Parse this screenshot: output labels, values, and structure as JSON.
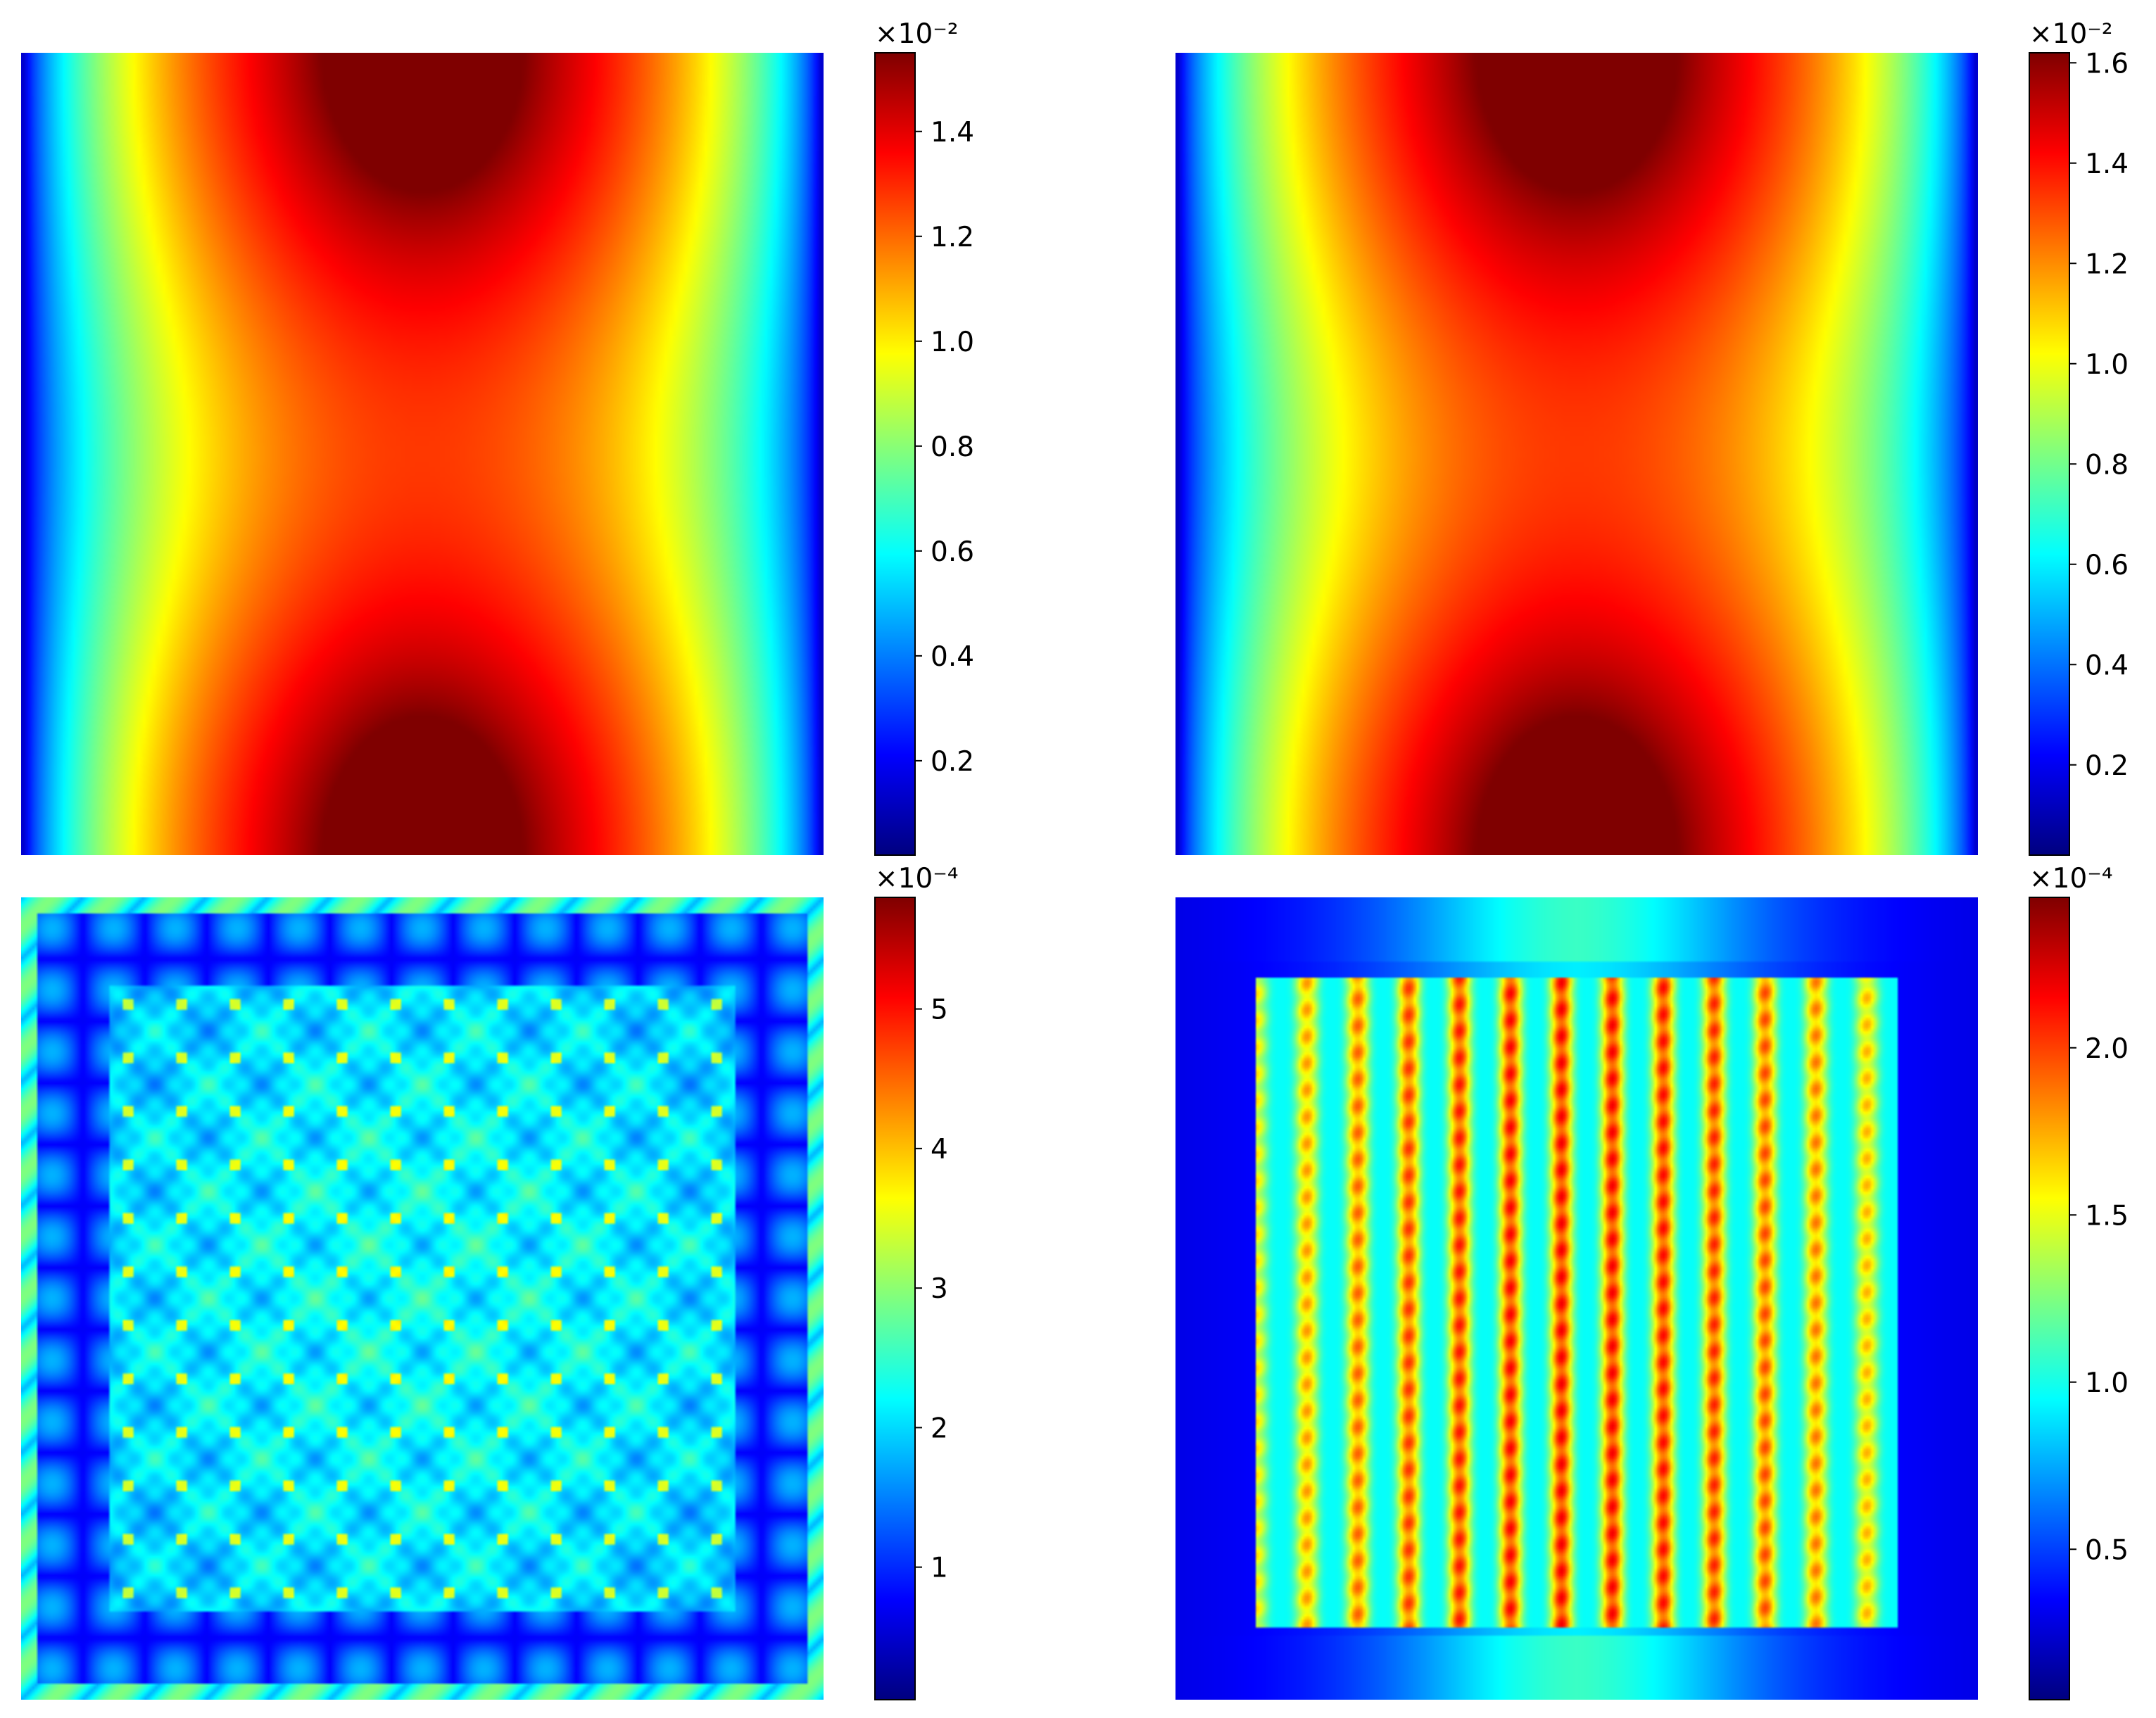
{
  "colormap": "jet",
  "colormap_stops": [
    "#00007f",
    "#0000ff",
    "#007fff",
    "#00ffff",
    "#7fff7f",
    "#ffff00",
    "#ff7f00",
    "#ff0000",
    "#7f0000"
  ],
  "chart_data": [
    {
      "type": "heatmap",
      "panel": "top-left",
      "pattern": "hourglass",
      "colorbar": {
        "multiplier": "×10⁻²",
        "range": [
          0.02,
          1.55
        ],
        "ticks": [
          0.2,
          0.4,
          0.6,
          0.8,
          1.0,
          1.2,
          1.4
        ],
        "tick_labels": [
          "0.2",
          "0.4",
          "0.6",
          "0.8",
          "1.0",
          "1.2",
          "1.4"
        ]
      }
    },
    {
      "type": "heatmap",
      "panel": "top-right",
      "pattern": "hourglass",
      "colorbar": {
        "multiplier": "×10⁻²",
        "range": [
          0.02,
          1.62
        ],
        "ticks": [
          0.2,
          0.4,
          0.6,
          0.8,
          1.0,
          1.2,
          1.4,
          1.6
        ],
        "tick_labels": [
          "0.2",
          "0.4",
          "0.6",
          "0.8",
          "1.0",
          "1.2",
          "1.4",
          "1.6"
        ]
      }
    },
    {
      "type": "heatmap",
      "panel": "bottom-left",
      "pattern": "grid-error",
      "colorbar": {
        "multiplier": "×10⁻⁴",
        "range": [
          0.05,
          5.8
        ],
        "ticks": [
          1,
          2,
          3,
          4,
          5
        ],
        "tick_labels": [
          "1",
          "2",
          "3",
          "4",
          "5"
        ]
      }
    },
    {
      "type": "heatmap",
      "panel": "bottom-right",
      "pattern": "stripes-error",
      "colorbar": {
        "multiplier": "×10⁻⁴",
        "range": [
          0.05,
          2.45
        ],
        "ticks": [
          0.5,
          1.0,
          1.5,
          2.0
        ],
        "tick_labels": [
          "0.5",
          "1.0",
          "1.5",
          "2.0"
        ]
      }
    }
  ]
}
